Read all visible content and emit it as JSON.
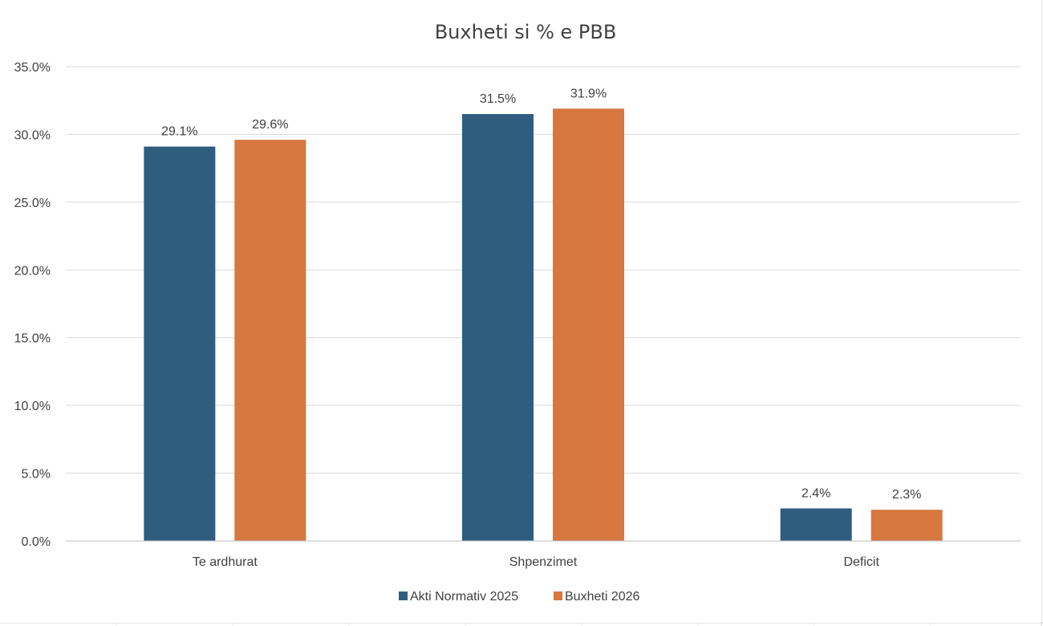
{
  "chart_data": {
    "type": "bar",
    "title": "Buxheti si % e PBB",
    "categories": [
      "Te ardhurat",
      "Shpenzimet",
      "Deficit"
    ],
    "series": [
      {
        "name": "Akti Normativ 2025",
        "values": [
          29.1,
          31.5,
          2.4
        ],
        "labels": [
          "29.1%",
          "31.5%",
          "2.4%"
        ],
        "color": "#2e5d80"
      },
      {
        "name": "Buxheti 2026",
        "values": [
          29.6,
          31.9,
          2.3
        ],
        "labels": [
          "29.6%",
          "31.9%",
          "2.3%"
        ],
        "color": "#d67740"
      }
    ],
    "yticks": [
      "0.0%",
      "5.0%",
      "10.0%",
      "15.0%",
      "20.0%",
      "25.0%",
      "30.0%",
      "35.0%"
    ],
    "ylim": [
      0,
      35
    ],
    "grid": true,
    "legend_position": "bottom",
    "gridline_color": "#d9d9d9"
  }
}
